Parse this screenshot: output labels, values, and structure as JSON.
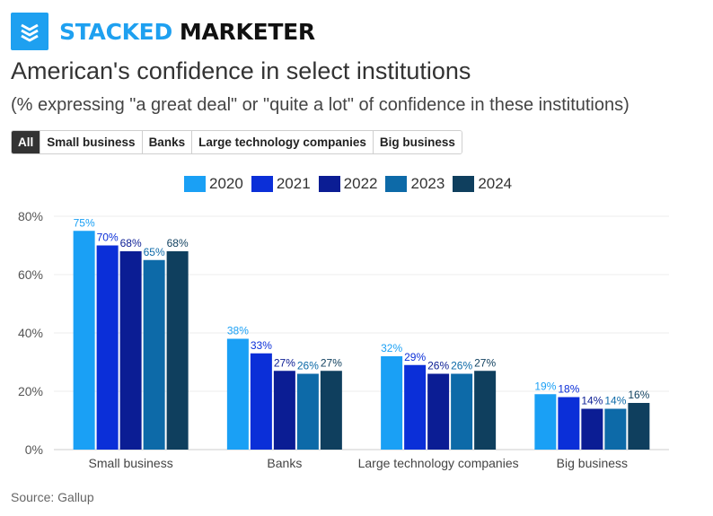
{
  "brand": {
    "part1": "STACKED",
    "part2": "MARKETER"
  },
  "title": "American's confidence in select institutions",
  "subtitle": "(% expressing \"a great deal\" or \"quite a lot\" of confidence in these institutions)",
  "tabs": [
    {
      "label": "All",
      "active": true
    },
    {
      "label": "Small business",
      "active": false
    },
    {
      "label": "Banks",
      "active": false
    },
    {
      "label": "Large technology companies",
      "active": false
    },
    {
      "label": "Big business",
      "active": false
    }
  ],
  "source": "Source: Gallup",
  "chart_data": {
    "type": "bar",
    "categories": [
      "Small business",
      "Banks",
      "Large technology companies",
      "Big business"
    ],
    "series": [
      {
        "name": "2020",
        "color": "#1aa0f5",
        "label_color": "#1aa0f5",
        "values": [
          75,
          38,
          32,
          19
        ]
      },
      {
        "name": "2021",
        "color": "#0b2fd8",
        "label_color": "#0b2fd8",
        "values": [
          70,
          33,
          29,
          18
        ]
      },
      {
        "name": "2022",
        "color": "#0b1d94",
        "label_color": "#0b1d94",
        "values": [
          68,
          27,
          26,
          14
        ]
      },
      {
        "name": "2023",
        "color": "#0d6aa8",
        "label_color": "#0d6aa8",
        "values": [
          65,
          26,
          26,
          14
        ]
      },
      {
        "name": "2024",
        "color": "#0f3f5e",
        "label_color": "#0f3f5e",
        "values": [
          68,
          27,
          27,
          16
        ]
      }
    ],
    "yticks": [
      "0%",
      "20%",
      "40%",
      "60%",
      "80%"
    ],
    "ylim": [
      0,
      80
    ],
    "value_suffix": "%",
    "grid": true,
    "legend_position": "top-center"
  }
}
